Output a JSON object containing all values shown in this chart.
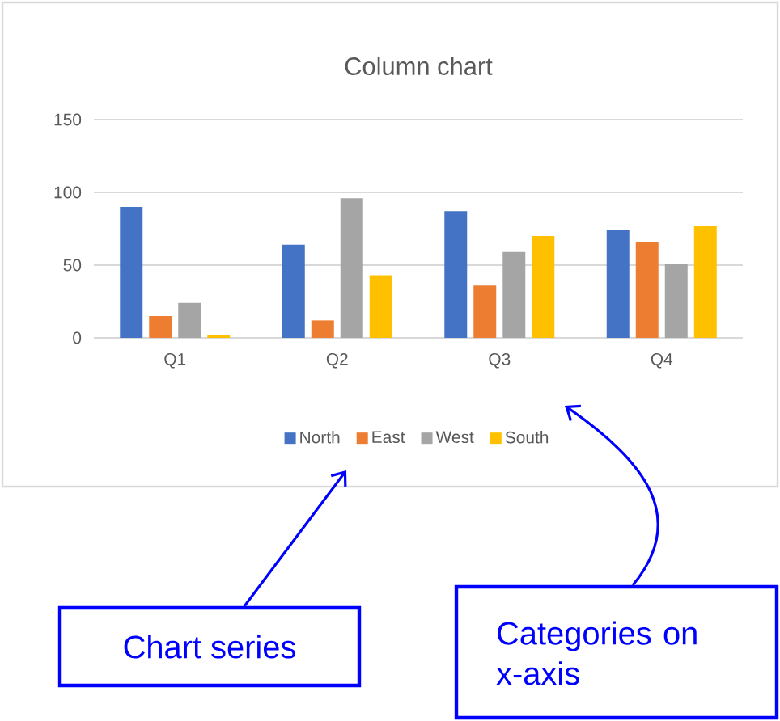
{
  "chart_data": {
    "type": "bar",
    "title": "Column chart",
    "categories": [
      "Q1",
      "Q2",
      "Q3",
      "Q4"
    ],
    "series": [
      {
        "name": "North",
        "color": "#4472c4",
        "values": [
          90,
          64,
          87,
          74
        ]
      },
      {
        "name": "East",
        "color": "#ed7d31",
        "values": [
          15,
          12,
          36,
          66
        ]
      },
      {
        "name": "West",
        "color": "#a5a5a5",
        "values": [
          24,
          96,
          59,
          51
        ]
      },
      {
        "name": "South",
        "color": "#ffc000",
        "values": [
          2,
          43,
          70,
          77
        ]
      }
    ],
    "ylim": [
      0,
      150
    ],
    "yticks": [
      0,
      50,
      100,
      150
    ],
    "grid": "y",
    "legend": "bottom",
    "annotations": [
      "Chart series",
      "Categories on x-axis"
    ]
  }
}
